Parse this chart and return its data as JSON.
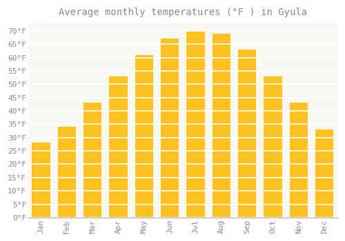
{
  "title": "Average monthly temperatures (°F ) in Gyula",
  "months": [
    "Jan",
    "Feb",
    "Mar",
    "Apr",
    "May",
    "Jun",
    "Jul",
    "Aug",
    "Sep",
    "Oct",
    "Nov",
    "Dec"
  ],
  "values": [
    28,
    34,
    43,
    53,
    61,
    67,
    70,
    69,
    63,
    53,
    43,
    33
  ],
  "bar_color_top": "#FFC020",
  "bar_color_bottom": "#FFB020",
  "bar_edge_color": "none",
  "background_color": "#FFFFFF",
  "plot_bg_color": "#F8F8F5",
  "grid_color": "#FFFFFF",
  "text_color": "#888888",
  "title_color": "#888888",
  "ylim": [
    0,
    73
  ],
  "yticks": [
    0,
    5,
    10,
    15,
    20,
    25,
    30,
    35,
    40,
    45,
    50,
    55,
    60,
    65,
    70
  ],
  "title_fontsize": 10,
  "tick_fontsize": 8,
  "bar_width": 0.7
}
